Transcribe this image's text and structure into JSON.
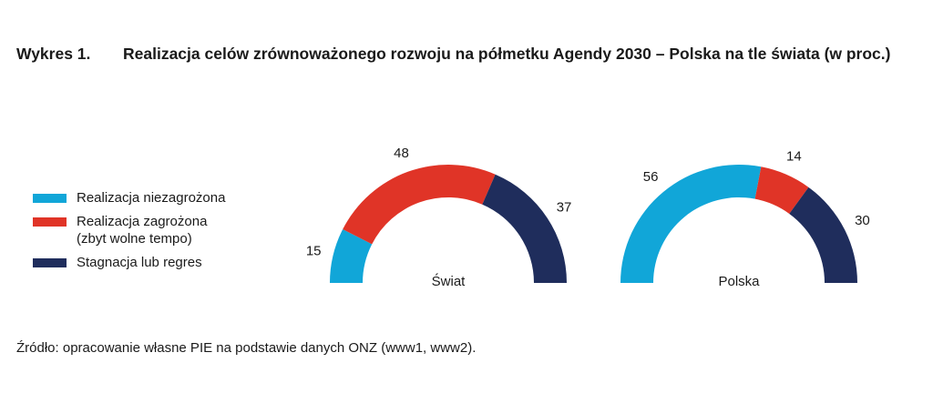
{
  "title": {
    "number": "Wykres 1.",
    "text": "Realizacja celów zrównoważonego rozwoju na półmetku Agendy 2030 – Polska na tle świata (w proc.)"
  },
  "legend": [
    {
      "label": "Realizacja niezagrożona",
      "color": "#11a6d8"
    },
    {
      "label": "Realizacja zagrożona\n(zbyt wolne tempo)",
      "color": "#e03427"
    },
    {
      "label": "Stagnacja lub regres",
      "color": "#1f2d5c"
    }
  ],
  "source": "Źródło: opracowanie własne PIE na podstawie danych ONZ (www1, www2).",
  "chart_data": [
    {
      "type": "pie",
      "subtype": "semi-donut",
      "label": "Świat",
      "categories": [
        "Realizacja niezagrożona",
        "Realizacja zagrożona (zbyt wolne tempo)",
        "Stagnacja lub regres"
      ],
      "values": [
        15,
        48,
        37
      ],
      "colors": [
        "#11a6d8",
        "#e03427",
        "#1f2d5c"
      ]
    },
    {
      "type": "pie",
      "subtype": "semi-donut",
      "label": "Polska",
      "categories": [
        "Realizacja niezagrożona",
        "Realizacja zagrożona (zbyt wolne tempo)",
        "Stagnacja lub regres"
      ],
      "values": [
        56,
        14,
        30
      ],
      "colors": [
        "#11a6d8",
        "#e03427",
        "#1f2d5c"
      ]
    }
  ]
}
